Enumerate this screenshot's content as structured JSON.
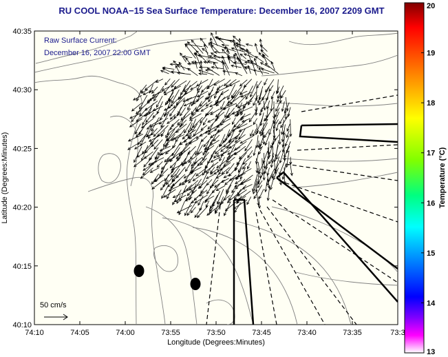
{
  "title": "RU COOL  NOAA−15  Sea Surface Temperature:  December 16, 2007 2209 GMT",
  "inset": {
    "line1": "Raw Surface Current:",
    "line2": "December 16, 2007 22:00 GMT"
  },
  "scale_label": "50 cm/s",
  "axes": {
    "xlabel": "Longitude (Degrees:Minutes)",
    "ylabel": "Latitude (Degrees:Minutes)",
    "xticks": [
      "74:10",
      "74:05",
      "74:00",
      "73:55",
      "73:50",
      "73:45",
      "73:40",
      "73:35",
      "73:3"
    ],
    "yticks": [
      "40:35",
      "40:30",
      "40:25",
      "40:20",
      "40:15",
      "40:10"
    ]
  },
  "colorbar": {
    "label": "Temperature (°C)",
    "ticks": [
      "20",
      "19",
      "18",
      "17",
      "16",
      "15",
      "14",
      "13"
    ],
    "range": [
      13,
      20
    ],
    "colors": [
      "#ff0000",
      "#ff8000",
      "#ffff00",
      "#80ff00",
      "#00ff80",
      "#00ffff",
      "#0080ff",
      "#0000ff",
      "#ff00ff",
      "#ffffff"
    ]
  },
  "colors": {
    "title": "#1a1a8c",
    "map_background": "#fffff4",
    "contours": "#808080",
    "vectors": "#000000"
  }
}
